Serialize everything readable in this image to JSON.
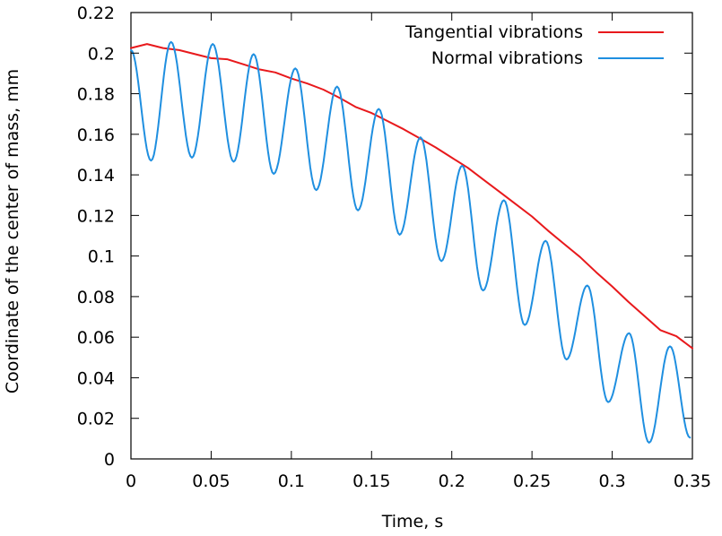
{
  "chart_data": {
    "type": "line",
    "title": "",
    "xlabel": "Time, s",
    "ylabel": "Coordinate of the center of mass, mm",
    "xlim": [
      0,
      0.35
    ],
    "ylim": [
      0,
      0.22
    ],
    "x_ticks": [
      0,
      0.05,
      0.1,
      0.15,
      0.2,
      0.25,
      0.3,
      0.35
    ],
    "x_tick_labels": [
      "0",
      "0.05",
      "0.1",
      "0.15",
      "0.2",
      "0.25",
      "0.3",
      "0.35"
    ],
    "y_ticks": [
      0,
      0.02,
      0.04,
      0.06,
      0.08,
      0.1,
      0.12,
      0.14,
      0.16,
      0.18,
      0.2,
      0.22
    ],
    "y_tick_labels": [
      "0",
      "0.02",
      "0.04",
      "0.06",
      "0.08",
      "0.1",
      "0.12",
      "0.14",
      "0.16",
      "0.18",
      "0.2",
      "0.22"
    ],
    "grid": false,
    "legend_position": "top-right",
    "series": [
      {
        "name": "Tangential vibrations",
        "color": "#e8191c",
        "x": [
          0,
          0.01,
          0.02,
          0.03,
          0.04,
          0.05,
          0.06,
          0.07,
          0.08,
          0.09,
          0.1,
          0.11,
          0.12,
          0.13,
          0.14,
          0.15,
          0.16,
          0.17,
          0.18,
          0.19,
          0.2,
          0.21,
          0.22,
          0.23,
          0.24,
          0.25,
          0.26,
          0.27,
          0.28,
          0.29,
          0.3,
          0.31,
          0.32,
          0.33,
          0.34,
          0.35
        ],
        "y": [
          0.2025,
          0.2045,
          0.2025,
          0.2015,
          0.1995,
          0.1975,
          0.197,
          0.1945,
          0.192,
          0.1905,
          0.1875,
          0.185,
          0.182,
          0.178,
          0.1735,
          0.1705,
          0.1665,
          0.1625,
          0.158,
          0.1535,
          0.1485,
          0.1435,
          0.1375,
          0.1315,
          0.1255,
          0.1195,
          0.1125,
          0.106,
          0.0995,
          0.092,
          0.085,
          0.0775,
          0.0705,
          0.0635,
          0.0605,
          0.0545
        ]
      },
      {
        "name": "Normal vibrations",
        "color": "#1f8fe0",
        "x": [
          0,
          0.0125,
          0.025,
          0.038,
          0.051,
          0.064,
          0.0765,
          0.089,
          0.1025,
          0.1155,
          0.1285,
          0.1415,
          0.1545,
          0.1675,
          0.1805,
          0.1935,
          0.2065,
          0.2195,
          0.2325,
          0.2455,
          0.2585,
          0.2715,
          0.2845,
          0.2975,
          0.3105,
          0.323,
          0.336,
          0.3485
        ],
        "y": [
          0.2015,
          0.147,
          0.2055,
          0.1485,
          0.2045,
          0.1465,
          0.1995,
          0.1405,
          0.1925,
          0.1325,
          0.1835,
          0.1225,
          0.1725,
          0.1105,
          0.1585,
          0.0975,
          0.1445,
          0.083,
          0.1275,
          0.066,
          0.1075,
          0.049,
          0.0855,
          0.028,
          0.062,
          0.008,
          0.0555,
          0.0105
        ]
      }
    ]
  }
}
